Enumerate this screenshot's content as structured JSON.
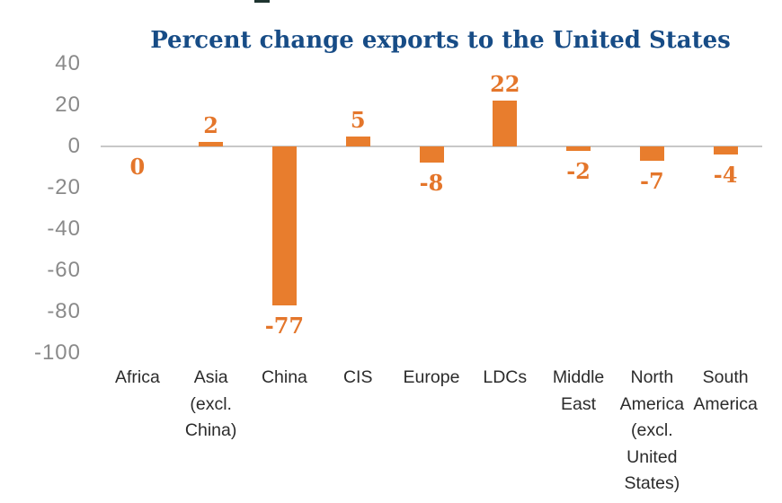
{
  "artifacts": {
    "top_cropped_text_fragment_color": "#1e3430"
  },
  "colors": {
    "bar_orange": "#E87D2D",
    "value_label_orange": "#E4762B",
    "title_blue": "#174C86",
    "axis_line_gray": "#C8C8C8",
    "tick_label_gray": "#8A8A8A",
    "category_label_dark": "#2B2B2B",
    "background": "#FFFFFF"
  },
  "chart_data": {
    "type": "bar",
    "title": "Percent change exports to the United States",
    "xlabel": "",
    "ylabel": "",
    "categories": [
      "Africa",
      "Asia (excl. China)",
      "China",
      "CIS",
      "Europe",
      "LDCs",
      "Middle East",
      "North America (excl. United States)",
      "South America"
    ],
    "category_lines": [
      [
        "Africa"
      ],
      [
        "Asia",
        "(excl.",
        "China)"
      ],
      [
        "China"
      ],
      [
        "CIS"
      ],
      [
        "Europe"
      ],
      [
        "LDCs"
      ],
      [
        "Middle",
        "East"
      ],
      [
        "North",
        "America",
        "(excl.",
        "United",
        "States)"
      ],
      [
        "South",
        "America"
      ]
    ],
    "values": [
      0,
      2,
      -77,
      5,
      -8,
      22,
      -2,
      -7,
      -4
    ],
    "value_labels": [
      "0",
      "2",
      "-77",
      "5",
      "-8",
      "22",
      "-2",
      "-7",
      "-4"
    ],
    "yticks": [
      40,
      20,
      0,
      -20,
      -40,
      -60,
      -80,
      -100
    ],
    "ylim": [
      -100,
      40
    ],
    "grid": false,
    "legend": null,
    "series_color": "#E87D2D"
  }
}
